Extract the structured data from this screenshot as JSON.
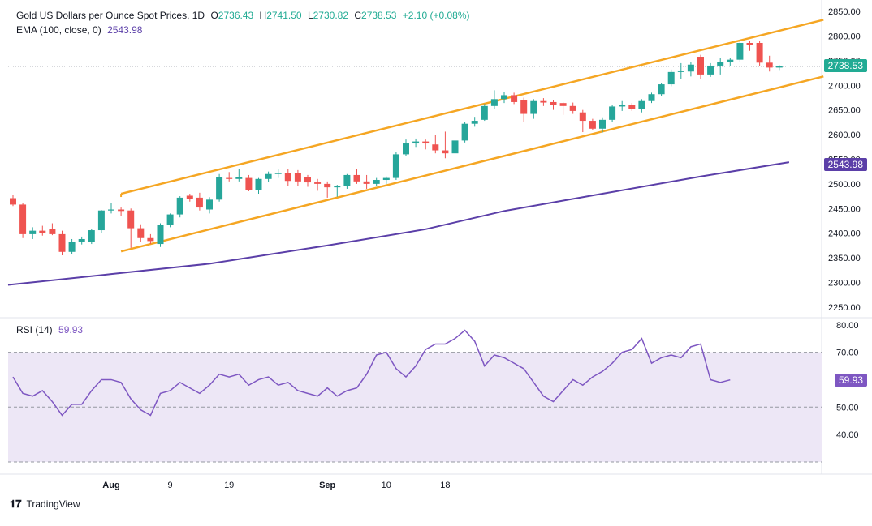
{
  "header": {
    "title": "Gold US Dollars per Ounce Spot Prices, 1D",
    "o_label": "O",
    "o_value": "2736.43",
    "h_label": "H",
    "h_value": "2741.50",
    "l_label": "L",
    "l_value": "2730.82",
    "c_label": "C",
    "c_value": "2738.53",
    "change": "+2.10 (+0.08%)",
    "ema_label": "EMA (100, close, 0)",
    "ema_value": "2543.98",
    "rsi_label": "RSI (14)",
    "rsi_value": "59.93"
  },
  "tags": {
    "last_price": "2738.53",
    "ema_price": "2543.98",
    "rsi": "59.93"
  },
  "footer": {
    "brand": "TradingView"
  },
  "colors": {
    "up": "#26a69a",
    "down": "#ef5350",
    "channel": "#f5a623",
    "ema": "#5b3fa8",
    "rsi": "#7e57c2",
    "rsi_band": "#ede7f6"
  },
  "chart_data": [
    {
      "type": "candlestick",
      "title": "Gold US Dollars per Ounce Spot Prices, 1D",
      "y_ticks": [
        2250,
        2300,
        2350,
        2400,
        2450,
        2500,
        2550,
        2600,
        2650,
        2700,
        2750,
        2800,
        2850
      ],
      "y_tick_labels": [
        "2250.00",
        "2300.00",
        "2350.00",
        "2400.00",
        "2450.00",
        "2500.00",
        "2550.00",
        "2600.00",
        "2650.00",
        "2700.00",
        "2750.00",
        "2800.00",
        "2850.00"
      ],
      "ylim": [
        2235,
        2860
      ],
      "x_tick_labels": [
        {
          "label": "Aug",
          "bar": 10,
          "bold": true
        },
        {
          "label": "9",
          "bar": 16,
          "bold": false
        },
        {
          "label": "19",
          "bar": 22,
          "bold": false
        },
        {
          "label": "Sep",
          "bar": 32,
          "bold": true
        },
        {
          "label": "10",
          "bar": 38,
          "bold": false
        },
        {
          "label": "18",
          "bar": 44,
          "bold": false
        }
      ],
      "candles": [
        [
          2471,
          2478,
          2455,
          2458
        ],
        [
          2458,
          2462,
          2390,
          2398
        ],
        [
          2398,
          2412,
          2388,
          2405
        ],
        [
          2405,
          2415,
          2395,
          2400
        ],
        [
          2408,
          2420,
          2396,
          2398
        ],
        [
          2398,
          2405,
          2355,
          2362
        ],
        [
          2362,
          2388,
          2357,
          2383
        ],
        [
          2383,
          2393,
          2377,
          2388
        ],
        [
          2382,
          2408,
          2378,
          2406
        ],
        [
          2406,
          2447,
          2400,
          2446
        ],
        [
          2446,
          2462,
          2440,
          2448
        ],
        [
          2448,
          2452,
          2435,
          2445
        ],
        [
          2446,
          2450,
          2370,
          2410
        ],
        [
          2410,
          2418,
          2382,
          2390
        ],
        [
          2390,
          2398,
          2378,
          2384
        ],
        [
          2378,
          2420,
          2372,
          2416
        ],
        [
          2416,
          2440,
          2412,
          2438
        ],
        [
          2438,
          2475,
          2432,
          2472
        ],
        [
          2476,
          2480,
          2464,
          2470
        ],
        [
          2472,
          2482,
          2446,
          2452
        ],
        [
          2448,
          2473,
          2440,
          2468
        ],
        [
          2468,
          2520,
          2464,
          2514
        ],
        [
          2512,
          2524,
          2505,
          2510
        ],
        [
          2510,
          2530,
          2505,
          2513
        ],
        [
          2512,
          2518,
          2485,
          2488
        ],
        [
          2488,
          2512,
          2480,
          2510
        ],
        [
          2510,
          2525,
          2504,
          2520
        ],
        [
          2520,
          2530,
          2512,
          2522
        ],
        [
          2522,
          2530,
          2495,
          2506
        ],
        [
          2522,
          2528,
          2495,
          2505
        ],
        [
          2514,
          2518,
          2494,
          2503
        ],
        [
          2503,
          2510,
          2486,
          2500
        ],
        [
          2500,
          2505,
          2472,
          2493
        ],
        [
          2493,
          2498,
          2474,
          2496
        ],
        [
          2496,
          2520,
          2490,
          2518
        ],
        [
          2518,
          2530,
          2500,
          2505
        ],
        [
          2505,
          2518,
          2490,
          2500
        ],
        [
          2500,
          2512,
          2495,
          2508
        ],
        [
          2508,
          2515,
          2500,
          2512
        ],
        [
          2512,
          2565,
          2508,
          2560
        ],
        [
          2560,
          2590,
          2556,
          2582
        ],
        [
          2582,
          2592,
          2575,
          2586
        ],
        [
          2586,
          2590,
          2570,
          2582
        ],
        [
          2580,
          2600,
          2562,
          2568
        ],
        [
          2568,
          2606,
          2552,
          2562
        ],
        [
          2562,
          2592,
          2557,
          2588
        ],
        [
          2588,
          2626,
          2584,
          2622
        ],
        [
          2622,
          2636,
          2616,
          2628
        ],
        [
          2630,
          2662,
          2628,
          2658
        ],
        [
          2658,
          2690,
          2652,
          2672
        ],
        [
          2672,
          2686,
          2664,
          2680
        ],
        [
          2680,
          2685,
          2662,
          2666
        ],
        [
          2670,
          2675,
          2626,
          2642
        ],
        [
          2642,
          2672,
          2632,
          2668
        ],
        [
          2668,
          2674,
          2658,
          2665
        ],
        [
          2666,
          2670,
          2650,
          2660
        ],
        [
          2664,
          2666,
          2640,
          2658
        ],
        [
          2658,
          2665,
          2642,
          2648
        ],
        [
          2645,
          2650,
          2605,
          2628
        ],
        [
          2628,
          2632,
          2610,
          2612
        ],
        [
          2612,
          2635,
          2604,
          2630
        ],
        [
          2630,
          2660,
          2626,
          2657
        ],
        [
          2657,
          2668,
          2648,
          2660
        ],
        [
          2660,
          2664,
          2648,
          2652
        ],
        [
          2652,
          2672,
          2645,
          2668
        ],
        [
          2668,
          2685,
          2664,
          2682
        ],
        [
          2682,
          2705,
          2678,
          2702
        ],
        [
          2702,
          2732,
          2698,
          2727
        ],
        [
          2727,
          2745,
          2712,
          2730
        ],
        [
          2728,
          2748,
          2718,
          2742
        ],
        [
          2758,
          2762,
          2712,
          2722
        ],
        [
          2722,
          2745,
          2717,
          2740
        ],
        [
          2740,
          2755,
          2722,
          2748
        ],
        [
          2748,
          2756,
          2740,
          2752
        ],
        [
          2752,
          2790,
          2748,
          2786
        ],
        [
          2786,
          2790,
          2770,
          2782
        ],
        [
          2786,
          2790,
          2740,
          2746
        ],
        [
          2746,
          2760,
          2728,
          2736
        ],
        [
          2736,
          2741,
          2731,
          2739
        ]
      ],
      "ema": {
        "name": "EMA (100, close, 0)",
        "x": [
          -0.5,
          10,
          20,
          32,
          42,
          50,
          60,
          70,
          79
        ],
        "values": [
          2295,
          2317,
          2338,
          2375,
          2408,
          2445,
          2480,
          2515,
          2544
        ]
      },
      "channel": {
        "upper": {
          "x": [
            11,
            82.5
          ],
          "values": [
            2480,
            2833
          ]
        },
        "lower": {
          "x": [
            11,
            82.5
          ],
          "values": [
            2363,
            2718
          ]
        }
      },
      "last_price": 2738.53,
      "ema_last": 2543.98
    },
    {
      "type": "line",
      "title": "RSI (14)",
      "y_ticks": [
        40,
        50,
        60,
        70,
        80
      ],
      "y_tick_labels": [
        "40.00",
        "50.00",
        "",
        "70.00",
        "80.00"
      ],
      "ylim": [
        30,
        82
      ],
      "band": [
        30,
        70
      ],
      "dashed_levels": [
        30,
        50,
        70
      ],
      "values": [
        61,
        55,
        54,
        56,
        52,
        47,
        51,
        51,
        56,
        60,
        60,
        59,
        53,
        49,
        47,
        55,
        56,
        59,
        57,
        55,
        58,
        62,
        61,
        62,
        58,
        60,
        61,
        58,
        59,
        56,
        55,
        54,
        57,
        54,
        56,
        57,
        62,
        69,
        70,
        64,
        61,
        65,
        71,
        73,
        73,
        75,
        78,
        74,
        65,
        69,
        68,
        66,
        64,
        59,
        54,
        52,
        56,
        60,
        58,
        61,
        63,
        66,
        70,
        71,
        75,
        66,
        68,
        69,
        68,
        72,
        73,
        60,
        59,
        59.93
      ],
      "last": 59.93
    }
  ]
}
